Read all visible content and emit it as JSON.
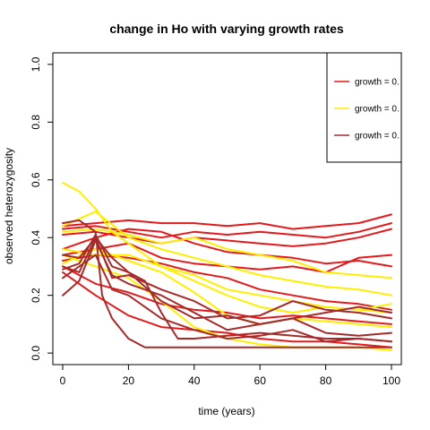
{
  "chart_data": {
    "type": "line",
    "title": "change in Ho with varying growth rates",
    "xlabel": "time (years)",
    "ylabel": "observed heterozygosity",
    "xlim": [
      -3,
      103
    ],
    "ylim": [
      -0.04,
      1.04
    ],
    "xticks": [
      0,
      20,
      40,
      60,
      80,
      100
    ],
    "yticks": [
      0.0,
      0.2,
      0.4,
      0.6,
      0.8,
      1.0
    ],
    "xtick_labels": [
      "0",
      "20",
      "40",
      "60",
      "80",
      "100"
    ],
    "ytick_labels": [
      "0.0",
      "0.2",
      "0.4",
      "0.6",
      "0.8",
      "1.0"
    ],
    "legend": {
      "placement": "top-right",
      "entries": [
        {
          "label": "growth = 0.",
          "color": "#e31a1c"
        },
        {
          "label": "growth = 0.",
          "color": "#ffee00"
        },
        {
          "label": "growth = 0.",
          "color": "#a52a2a"
        }
      ]
    },
    "series": [
      {
        "color": "#e31a1c",
        "points": [
          [
            0,
            0.44
          ],
          [
            10,
            0.45
          ],
          [
            20,
            0.46
          ],
          [
            30,
            0.45
          ],
          [
            40,
            0.45
          ],
          [
            50,
            0.44
          ],
          [
            60,
            0.45
          ],
          [
            70,
            0.43
          ],
          [
            80,
            0.44
          ],
          [
            90,
            0.45
          ],
          [
            100,
            0.48
          ]
        ]
      },
      {
        "color": "#e31a1c",
        "points": [
          [
            0,
            0.43
          ],
          [
            10,
            0.44
          ],
          [
            20,
            0.42
          ],
          [
            30,
            0.4
          ],
          [
            40,
            0.42
          ],
          [
            50,
            0.41
          ],
          [
            60,
            0.42
          ],
          [
            70,
            0.41
          ],
          [
            80,
            0.4
          ],
          [
            90,
            0.42
          ],
          [
            100,
            0.45
          ]
        ]
      },
      {
        "color": "#e31a1c",
        "points": [
          [
            0,
            0.41
          ],
          [
            10,
            0.42
          ],
          [
            20,
            0.4
          ],
          [
            30,
            0.38
          ],
          [
            40,
            0.4
          ],
          [
            50,
            0.39
          ],
          [
            60,
            0.38
          ],
          [
            70,
            0.37
          ],
          [
            80,
            0.38
          ],
          [
            90,
            0.4
          ],
          [
            100,
            0.43
          ]
        ]
      },
      {
        "color": "#e31a1c",
        "points": [
          [
            0,
            0.36
          ],
          [
            10,
            0.4
          ],
          [
            20,
            0.43
          ],
          [
            30,
            0.42
          ],
          [
            40,
            0.38
          ],
          [
            50,
            0.35
          ],
          [
            60,
            0.34
          ],
          [
            70,
            0.33
          ],
          [
            80,
            0.31
          ],
          [
            90,
            0.32
          ],
          [
            100,
            0.3
          ]
        ]
      },
      {
        "color": "#e31a1c",
        "points": [
          [
            0,
            0.34
          ],
          [
            10,
            0.36
          ],
          [
            20,
            0.38
          ],
          [
            30,
            0.33
          ],
          [
            40,
            0.31
          ],
          [
            50,
            0.3
          ],
          [
            60,
            0.29
          ],
          [
            70,
            0.3
          ],
          [
            80,
            0.28
          ],
          [
            90,
            0.33
          ],
          [
            100,
            0.34
          ]
        ]
      },
      {
        "color": "#e31a1c",
        "points": [
          [
            0,
            0.32
          ],
          [
            10,
            0.34
          ],
          [
            20,
            0.33
          ],
          [
            30,
            0.31
          ],
          [
            40,
            0.28
          ],
          [
            50,
            0.26
          ],
          [
            60,
            0.22
          ],
          [
            70,
            0.2
          ],
          [
            80,
            0.18
          ],
          [
            90,
            0.17
          ],
          [
            100,
            0.15
          ]
        ]
      },
      {
        "color": "#e31a1c",
        "points": [
          [
            0,
            0.3
          ],
          [
            10,
            0.24
          ],
          [
            20,
            0.21
          ],
          [
            30,
            0.17
          ],
          [
            40,
            0.15
          ],
          [
            50,
            0.14
          ],
          [
            60,
            0.12
          ],
          [
            70,
            0.13
          ],
          [
            80,
            0.12
          ],
          [
            90,
            0.11
          ],
          [
            100,
            0.1
          ]
        ]
      },
      {
        "color": "#e31a1c",
        "points": [
          [
            0,
            0.28
          ],
          [
            10,
            0.2
          ],
          [
            20,
            0.13
          ],
          [
            30,
            0.09
          ],
          [
            40,
            0.08
          ],
          [
            50,
            0.07
          ],
          [
            60,
            0.05
          ],
          [
            70,
            0.04
          ],
          [
            80,
            0.04
          ],
          [
            90,
            0.03
          ],
          [
            100,
            0.02
          ]
        ]
      },
      {
        "color": "#ffee00",
        "points": [
          [
            0,
            0.59
          ],
          [
            5,
            0.56
          ],
          [
            10,
            0.5
          ],
          [
            15,
            0.42
          ],
          [
            20,
            0.38
          ],
          [
            30,
            0.3
          ],
          [
            40,
            0.27
          ],
          [
            50,
            0.22
          ],
          [
            60,
            0.2
          ],
          [
            70,
            0.18
          ],
          [
            80,
            0.16
          ],
          [
            90,
            0.15
          ],
          [
            100,
            0.17
          ]
        ]
      },
      {
        "color": "#ffee00",
        "points": [
          [
            0,
            0.44
          ],
          [
            10,
            0.49
          ],
          [
            20,
            0.4
          ],
          [
            30,
            0.36
          ],
          [
            40,
            0.33
          ],
          [
            50,
            0.3
          ],
          [
            60,
            0.27
          ],
          [
            70,
            0.25
          ],
          [
            80,
            0.23
          ],
          [
            90,
            0.22
          ],
          [
            100,
            0.2
          ]
        ]
      },
      {
        "color": "#ffee00",
        "points": [
          [
            0,
            0.42
          ],
          [
            10,
            0.43
          ],
          [
            20,
            0.41
          ],
          [
            30,
            0.38
          ],
          [
            40,
            0.4
          ],
          [
            50,
            0.36
          ],
          [
            60,
            0.34
          ],
          [
            70,
            0.32
          ],
          [
            80,
            0.28
          ],
          [
            90,
            0.27
          ],
          [
            100,
            0.26
          ]
        ]
      },
      {
        "color": "#ffee00",
        "points": [
          [
            0,
            0.36
          ],
          [
            10,
            0.34
          ],
          [
            20,
            0.34
          ],
          [
            30,
            0.3
          ],
          [
            40,
            0.25
          ],
          [
            50,
            0.2
          ],
          [
            60,
            0.16
          ],
          [
            70,
            0.14
          ],
          [
            80,
            0.16
          ],
          [
            90,
            0.15
          ],
          [
            100,
            0.14
          ]
        ]
      },
      {
        "color": "#ffee00",
        "points": [
          [
            0,
            0.31
          ],
          [
            10,
            0.36
          ],
          [
            20,
            0.32
          ],
          [
            30,
            0.28
          ],
          [
            40,
            0.21
          ],
          [
            50,
            0.13
          ],
          [
            60,
            0.1
          ],
          [
            70,
            0.12
          ],
          [
            80,
            0.11
          ],
          [
            90,
            0.1
          ],
          [
            100,
            0.09
          ]
        ]
      },
      {
        "color": "#ffee00",
        "points": [
          [
            0,
            0.34
          ],
          [
            10,
            0.3
          ],
          [
            20,
            0.26
          ],
          [
            30,
            0.18
          ],
          [
            40,
            0.09
          ],
          [
            50,
            0.05
          ],
          [
            60,
            0.03
          ],
          [
            70,
            0.02
          ],
          [
            80,
            0.02
          ],
          [
            90,
            0.02
          ],
          [
            100,
            0.01
          ]
        ]
      },
      {
        "color": "#a52a2a",
        "points": [
          [
            0,
            0.45
          ],
          [
            5,
            0.46
          ],
          [
            10,
            0.42
          ],
          [
            12,
            0.2
          ],
          [
            15,
            0.12
          ],
          [
            20,
            0.05
          ],
          [
            25,
            0.02
          ],
          [
            40,
            0.02
          ],
          [
            60,
            0.02
          ],
          [
            80,
            0.02
          ],
          [
            100,
            0.02
          ]
        ]
      },
      {
        "color": "#a52a2a",
        "points": [
          [
            0,
            0.34
          ],
          [
            5,
            0.33
          ],
          [
            10,
            0.4
          ],
          [
            15,
            0.33
          ],
          [
            20,
            0.28
          ],
          [
            25,
            0.25
          ],
          [
            30,
            0.14
          ],
          [
            35,
            0.05
          ],
          [
            40,
            0.05
          ],
          [
            50,
            0.06
          ],
          [
            60,
            0.07
          ],
          [
            70,
            0.06
          ],
          [
            80,
            0.05
          ],
          [
            90,
            0.05
          ],
          [
            100,
            0.04
          ]
        ]
      },
      {
        "color": "#a52a2a",
        "points": [
          [
            0,
            0.29
          ],
          [
            5,
            0.31
          ],
          [
            10,
            0.41
          ],
          [
            15,
            0.3
          ],
          [
            20,
            0.28
          ],
          [
            30,
            0.18
          ],
          [
            40,
            0.12
          ],
          [
            50,
            0.13
          ],
          [
            60,
            0.1
          ],
          [
            70,
            0.12
          ],
          [
            80,
            0.14
          ],
          [
            90,
            0.16
          ],
          [
            100,
            0.14
          ]
        ]
      },
      {
        "color": "#a52a2a",
        "points": [
          [
            0,
            0.3
          ],
          [
            5,
            0.28
          ],
          [
            10,
            0.4
          ],
          [
            15,
            0.26
          ],
          [
            20,
            0.27
          ],
          [
            30,
            0.22
          ],
          [
            40,
            0.18
          ],
          [
            50,
            0.12
          ],
          [
            60,
            0.13
          ],
          [
            70,
            0.18
          ],
          [
            80,
            0.15
          ],
          [
            90,
            0.14
          ],
          [
            100,
            0.12
          ]
        ]
      },
      {
        "color": "#a52a2a",
        "points": [
          [
            0,
            0.2
          ],
          [
            5,
            0.25
          ],
          [
            10,
            0.39
          ],
          [
            15,
            0.27
          ],
          [
            20,
            0.24
          ],
          [
            30,
            0.2
          ],
          [
            40,
            0.14
          ],
          [
            50,
            0.08
          ],
          [
            60,
            0.1
          ],
          [
            70,
            0.12
          ],
          [
            80,
            0.07
          ],
          [
            90,
            0.06
          ],
          [
            100,
            0.07
          ]
        ]
      },
      {
        "color": "#a52a2a",
        "points": [
          [
            0,
            0.26
          ],
          [
            5,
            0.3
          ],
          [
            10,
            0.34
          ],
          [
            15,
            0.22
          ],
          [
            20,
            0.2
          ],
          [
            30,
            0.12
          ],
          [
            40,
            0.08
          ],
          [
            50,
            0.05
          ],
          [
            60,
            0.06
          ],
          [
            70,
            0.08
          ],
          [
            80,
            0.04
          ],
          [
            90,
            0.05
          ],
          [
            100,
            0.04
          ]
        ]
      }
    ]
  }
}
